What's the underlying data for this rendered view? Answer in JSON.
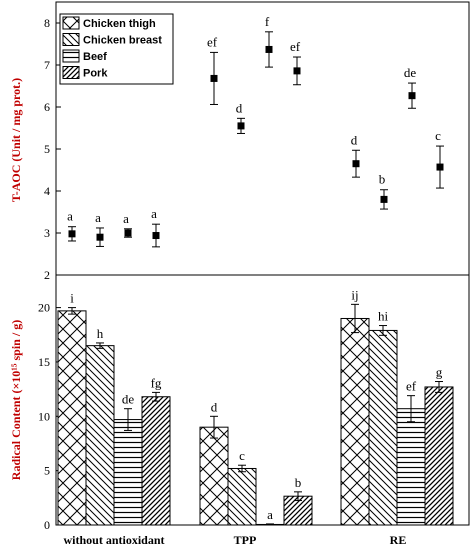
{
  "chart_data": [
    {
      "type": "scatter",
      "ylabel": "T-AOC (Unit / mg prot.)",
      "ylim": [
        2,
        8.5
      ],
      "yticks": [
        2,
        3,
        4,
        5,
        6,
        7,
        8
      ],
      "groups": [
        "without antioxidant",
        "TPP",
        "RE"
      ],
      "series": [
        {
          "name": "Chicken thigh",
          "values": [
            2.98,
            6.68,
            4.65
          ],
          "errors": [
            0.17,
            0.62,
            0.32
          ],
          "labels": [
            "a",
            "ef",
            "d"
          ]
        },
        {
          "name": "Chicken breast",
          "values": [
            2.9,
            5.55,
            3.8
          ],
          "errors": [
            0.22,
            0.18,
            0.23
          ],
          "labels": [
            "a",
            "d",
            "b"
          ]
        },
        {
          "name": "Beef",
          "values": [
            3.0,
            7.37,
            6.27
          ],
          "errors": [
            0.1,
            0.42,
            0.3
          ],
          "labels": [
            "a",
            "f",
            "de"
          ]
        },
        {
          "name": "Pork",
          "values": [
            2.94,
            6.86,
            4.57
          ],
          "errors": [
            0.27,
            0.33,
            0.5
          ],
          "labels": [
            "a",
            "ef",
            "c"
          ]
        }
      ],
      "legend": "top-left",
      "grid": false
    },
    {
      "type": "bar",
      "ylabel": "Radical Content (×10¹⁵ spin / g)",
      "ylim": [
        0,
        23
      ],
      "yticks": [
        0,
        5,
        10,
        15,
        20
      ],
      "categories": [
        "without antioxidant",
        "TPP",
        "RE"
      ],
      "series": [
        {
          "name": "Chicken thigh",
          "values": [
            19.7,
            9.0,
            19.0
          ],
          "errors": [
            0.3,
            1.0,
            1.3
          ],
          "labels": [
            "i",
            "d",
            "ij"
          ]
        },
        {
          "name": "Chicken breast",
          "values": [
            16.5,
            5.2,
            17.9
          ],
          "errors": [
            0.25,
            0.3,
            0.45
          ],
          "labels": [
            "h",
            "c",
            "hi"
          ]
        },
        {
          "name": "Beef",
          "values": [
            9.7,
            0.05,
            10.7
          ],
          "errors": [
            1.0,
            0.05,
            1.2
          ],
          "labels": [
            "de",
            "a",
            "ef"
          ]
        },
        {
          "name": "Pork",
          "values": [
            11.8,
            2.65,
            12.7
          ],
          "errors": [
            0.4,
            0.4,
            0.5
          ],
          "labels": [
            "fg",
            "b",
            "g"
          ]
        }
      ],
      "grid": false
    }
  ]
}
